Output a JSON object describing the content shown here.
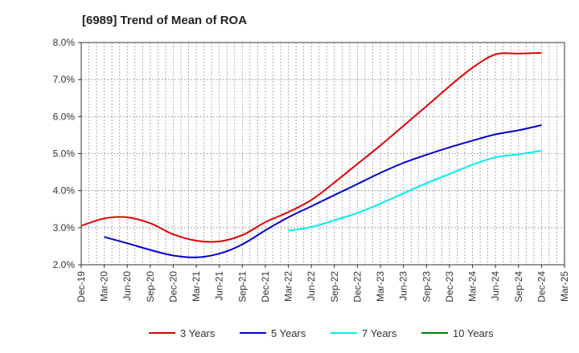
{
  "chart_data": {
    "type": "line",
    "title": "[6989]  Trend of Mean of ROA",
    "xlabel": "",
    "ylabel": "",
    "x": [
      "Dec-19",
      "Mar-20",
      "Jun-20",
      "Sep-20",
      "Dec-20",
      "Mar-21",
      "Jun-21",
      "Sep-21",
      "Dec-21",
      "Mar-22",
      "Jun-22",
      "Sep-22",
      "Dec-22",
      "Mar-23",
      "Jun-23",
      "Sep-23",
      "Dec-23",
      "Mar-24",
      "Jun-24",
      "Sep-24",
      "Dec-24",
      "Mar-25"
    ],
    "ylim": [
      2.0,
      8.0
    ],
    "yticks": [
      2.0,
      3.0,
      4.0,
      5.0,
      6.0,
      7.0,
      8.0
    ],
    "ytick_labels": [
      "2.0%",
      "3.0%",
      "4.0%",
      "5.0%",
      "6.0%",
      "7.0%",
      "8.0%"
    ],
    "grid": true,
    "legend_position": "bottom",
    "series": [
      {
        "name": "3 Years",
        "color": "#e00000",
        "values": [
          3.05,
          3.25,
          3.28,
          3.12,
          2.82,
          2.65,
          2.63,
          2.8,
          3.15,
          3.42,
          3.75,
          4.22,
          4.72,
          5.22,
          5.75,
          6.28,
          6.82,
          7.32,
          7.68,
          7.7,
          7.72,
          null
        ]
      },
      {
        "name": "5 Years",
        "color": "#0000cc",
        "values": [
          null,
          2.75,
          2.58,
          2.4,
          2.25,
          2.2,
          2.3,
          2.55,
          2.93,
          3.28,
          3.58,
          3.88,
          4.18,
          4.48,
          4.75,
          4.97,
          5.17,
          5.35,
          5.52,
          5.63,
          5.77,
          null
        ]
      },
      {
        "name": "7 Years",
        "color": "#00eeee",
        "values": [
          null,
          null,
          null,
          null,
          null,
          null,
          null,
          null,
          null,
          2.92,
          3.02,
          3.2,
          3.4,
          3.65,
          3.93,
          4.2,
          4.45,
          4.7,
          4.9,
          4.98,
          5.08,
          null
        ]
      },
      {
        "name": "10 Years",
        "color": "#008000",
        "values": [
          null,
          null,
          null,
          null,
          null,
          null,
          null,
          null,
          null,
          null,
          null,
          null,
          null,
          null,
          null,
          null,
          null,
          null,
          null,
          null,
          null,
          null
        ]
      }
    ]
  }
}
